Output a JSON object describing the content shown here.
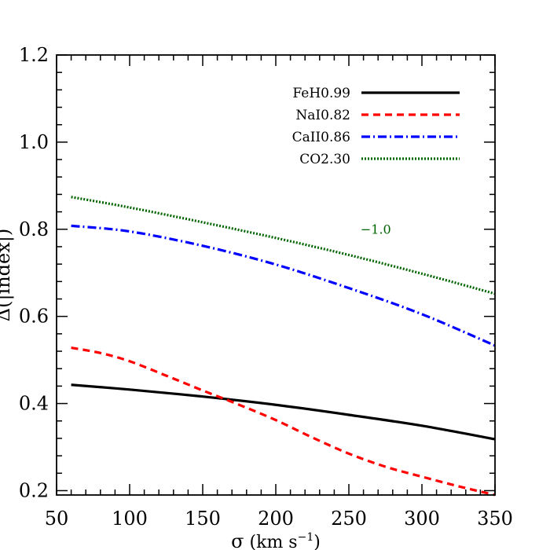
{
  "chart_data": {
    "type": "line",
    "xlabel_symbol": "σ",
    "xlabel_unit_prefix": " (km s",
    "xlabel_unit_exp": "−1",
    "xlabel_unit_suffix": ")",
    "ylabel": "Δ(|index|)",
    "xlim": [
      50,
      350
    ],
    "ylim": [
      0.19,
      1.2
    ],
    "xticks": [
      50,
      100,
      150,
      200,
      250,
      300,
      350
    ],
    "xtick_labels": [
      "50",
      "100",
      "150",
      "200",
      "250",
      "300",
      "350"
    ],
    "yticks": [
      0.2,
      0.4,
      0.6,
      0.8,
      1.0,
      1.2
    ],
    "ytick_labels": [
      "0.2",
      "0.4",
      "0.6",
      "0.8",
      "1.0",
      "1.2"
    ],
    "grid": false,
    "legend_position": "top-right",
    "annotation": {
      "text": "−1.0",
      "x": 258,
      "y": 0.79,
      "color": "#006400"
    },
    "series": [
      {
        "name": "FeH0.99",
        "color": "#000000",
        "dash": "",
        "x": [
          60,
          100,
          150,
          200,
          250,
          300,
          350
        ],
        "y": [
          0.443,
          0.432,
          0.416,
          0.397,
          0.374,
          0.349,
          0.318
        ]
      },
      {
        "name": "NaI0.82",
        "color": "#ff0000",
        "dash": "9 6",
        "x": [
          60,
          80,
          100,
          125,
          150,
          175,
          200,
          225,
          250,
          275,
          300,
          325,
          350
        ],
        "y": [
          0.528,
          0.516,
          0.497,
          0.464,
          0.43,
          0.397,
          0.362,
          0.322,
          0.285,
          0.255,
          0.232,
          0.21,
          0.19
        ]
      },
      {
        "name": "CaII0.86",
        "color": "#0000ff",
        "dash": "11 4 2 4",
        "x": [
          60,
          100,
          150,
          200,
          250,
          300,
          350
        ],
        "y": [
          0.808,
          0.795,
          0.762,
          0.719,
          0.665,
          0.605,
          0.533
        ]
      },
      {
        "name": "CO2.30",
        "color": "#006400",
        "dash": "2 2",
        "x": [
          60,
          100,
          150,
          200,
          250,
          300,
          350
        ],
        "y": [
          0.874,
          0.85,
          0.816,
          0.78,
          0.741,
          0.698,
          0.652
        ]
      }
    ]
  }
}
